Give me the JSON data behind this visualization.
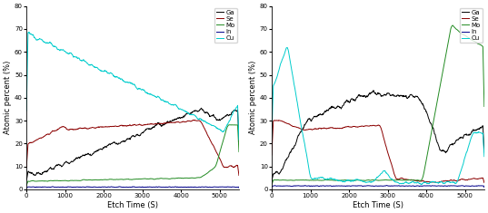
{
  "xlabel": "Etch Time (S)",
  "ylabel": "Atomic percent (%)",
  "xlim": [
    0,
    5500
  ],
  "ylim": [
    0,
    80
  ],
  "yticks": [
    0,
    10,
    20,
    30,
    40,
    50,
    60,
    70,
    80
  ],
  "xticks": [
    0,
    1000,
    2000,
    3000,
    4000,
    5000
  ],
  "legend_labels": [
    "Ga",
    "Se",
    "Mo",
    "In",
    "Cu"
  ],
  "colors": {
    "Ga": "#000000",
    "Se": "#8B0000",
    "Mo": "#228B22",
    "In": "#00008B",
    "Cu": "#00CCCC"
  },
  "figsize": [
    5.37,
    2.35
  ],
  "dpi": 100
}
